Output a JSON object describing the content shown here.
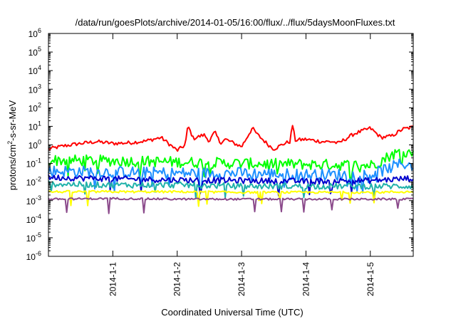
{
  "chart_data": {
    "type": "line",
    "title": "/data/run/goesPlots/archive/2014-01-05/16:00/flux/../flux/5daysMoonFluxes.txt",
    "xlabel": "Coordinated Universal Time (UTC)",
    "ylabel": "protons/cm2-s-sr-MeV",
    "y_scale": "log",
    "ylim": [
      1e-06,
      1000000.0
    ],
    "y_ticks": [
      {
        "value": 1e-06,
        "base": "10",
        "exp": "-6"
      },
      {
        "value": 1e-05,
        "base": "10",
        "exp": "-5"
      },
      {
        "value": 0.0001,
        "base": "10",
        "exp": "-4"
      },
      {
        "value": 0.001,
        "base": "10",
        "exp": "-3"
      },
      {
        "value": 0.01,
        "base": "10",
        "exp": "-2"
      },
      {
        "value": 0.1,
        "base": "10",
        "exp": "-1"
      },
      {
        "value": 1,
        "base": "10",
        "exp": "0"
      },
      {
        "value": 10,
        "base": "10",
        "exp": "1"
      },
      {
        "value": 100,
        "base": "10",
        "exp": "2"
      },
      {
        "value": 1000,
        "base": "10",
        "exp": "3"
      },
      {
        "value": 10000,
        "base": "10",
        "exp": "4"
      },
      {
        "value": 100000,
        "base": "10",
        "exp": "5"
      },
      {
        "value": 1000000,
        "base": "10",
        "exp": "6"
      }
    ],
    "xlim": [
      "2013-12-31T00:00",
      "2014-01-05T16:00"
    ],
    "x_ticks": [
      {
        "value": "2014-01-01T00:00",
        "label": "2014-1-1"
      },
      {
        "value": "2014-01-02T00:00",
        "label": "2014-1-2"
      },
      {
        "value": "2014-01-03T00:00",
        "label": "2014-1-3"
      },
      {
        "value": "2014-01-04T00:00",
        "label": "2014-1-4"
      },
      {
        "value": "2014-01-05T00:00",
        "label": "2014-1-5"
      }
    ],
    "grid": false,
    "series": [
      {
        "color": "#ff0000",
        "x": [
          "2013-12-31T00:00",
          "2013-12-31T06:00",
          "2013-12-31T12:00",
          "2013-12-31T18:00",
          "2014-01-01T00:00",
          "2014-01-01T06:00",
          "2014-01-01T12:00",
          "2014-01-01T18:00",
          "2014-01-02T00:00",
          "2014-01-02T03:00",
          "2014-01-02T04:00",
          "2014-01-02T06:00",
          "2014-01-02T10:00",
          "2014-01-02T12:00",
          "2014-01-02T14:00",
          "2014-01-02T16:00",
          "2014-01-02T18:00",
          "2014-01-03T00:00",
          "2014-01-03T04:00",
          "2014-01-03T06:00",
          "2014-01-03T10:00",
          "2014-01-03T12:00",
          "2014-01-03T16:00",
          "2014-01-03T18:00",
          "2014-01-03T19:00",
          "2014-01-03T20:00",
          "2014-01-04T00:00",
          "2014-01-04T06:00",
          "2014-01-04T10:00",
          "2014-01-04T12:00",
          "2014-01-04T18:00",
          "2014-01-05T00:00",
          "2014-01-05T04:00",
          "2014-01-05T08:00",
          "2014-01-05T12:00",
          "2014-01-05T16:00"
        ],
        "values": [
          0.6,
          0.9,
          1.2,
          1.5,
          1.2,
          1.3,
          1.6,
          2.5,
          0.5,
          1.0,
          11,
          2.2,
          3.5,
          1.6,
          5.0,
          1.3,
          2.0,
          0.8,
          8.0,
          3.5,
          1.0,
          0.6,
          1.2,
          1.5,
          12,
          1.8,
          2.0,
          1.5,
          1.5,
          1.2,
          4.0,
          8.0,
          2.5,
          3.0,
          7.0,
          9.0
        ]
      },
      {
        "color": "#00ff00",
        "x": [
          "2013-12-31T00:00",
          "2014-01-01T00:00",
          "2014-01-02T00:00",
          "2014-01-03T00:00",
          "2014-01-04T00:00",
          "2014-01-05T00:00",
          "2014-01-05T03:00",
          "2014-01-05T08:00",
          "2014-01-05T12:00",
          "2014-01-05T16:00"
        ],
        "values": [
          0.15,
          0.14,
          0.12,
          0.1,
          0.09,
          0.08,
          0.12,
          0.3,
          0.45,
          0.35
        ]
      },
      {
        "color": "#1e90ff",
        "x": [
          "2013-12-31T00:00",
          "2014-01-01T00:00",
          "2014-01-02T00:00",
          "2014-01-03T00:00",
          "2014-01-04T00:00",
          "2014-01-05T00:00",
          "2014-01-05T06:00",
          "2014-01-05T12:00",
          "2014-01-05T16:00"
        ],
        "values": [
          0.04,
          0.035,
          0.03,
          0.03,
          0.025,
          0.025,
          0.05,
          0.1,
          0.08
        ]
      },
      {
        "color": "#0000cd",
        "x": [
          "2013-12-31T00:00",
          "2014-01-01T00:00",
          "2014-01-02T00:00",
          "2014-01-03T00:00",
          "2014-01-04T00:00",
          "2014-01-05T00:00",
          "2014-01-05T16:00"
        ],
        "values": [
          0.018,
          0.015,
          0.013,
          0.012,
          0.011,
          0.012,
          0.016
        ]
      },
      {
        "color": "#20b2aa",
        "x": [
          "2013-12-31T00:00",
          "2014-01-01T00:00",
          "2014-01-02T00:00",
          "2014-01-03T00:00",
          "2014-01-04T00:00",
          "2014-01-05T00:00",
          "2014-01-05T16:00"
        ],
        "values": [
          0.008,
          0.007,
          0.007,
          0.006,
          0.006,
          0.006,
          0.006
        ]
      },
      {
        "color": "#ffff00",
        "x": [
          "2013-12-31T00:00",
          "2014-01-01T00:00",
          "2014-01-02T00:00",
          "2014-01-03T00:00",
          "2014-01-04T00:00",
          "2014-01-05T00:00",
          "2014-01-05T16:00"
        ],
        "values": [
          0.003,
          0.003,
          0.003,
          0.0028,
          0.0028,
          0.0028,
          0.003
        ]
      },
      {
        "color": "#8b4a8b",
        "x": [
          "2013-12-31T00:00",
          "2014-01-01T00:00",
          "2014-01-02T00:00",
          "2014-01-03T00:00",
          "2014-01-04T00:00",
          "2014-01-05T00:00",
          "2014-01-05T16:00"
        ],
        "values": [
          0.0012,
          0.0013,
          0.0012,
          0.0012,
          0.0012,
          0.0012,
          0.0012
        ]
      }
    ]
  }
}
